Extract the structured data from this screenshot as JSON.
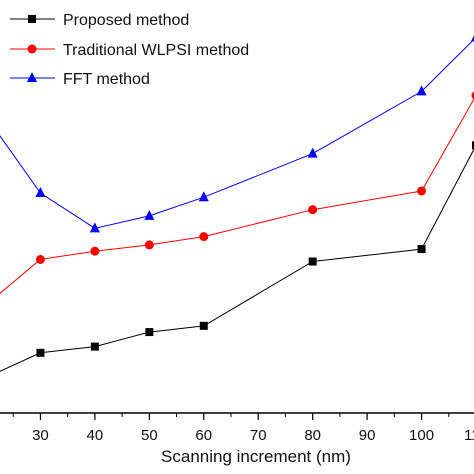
{
  "chart_data": {
    "type": "line",
    "title": "",
    "xlabel": "Scanning increment (nm)",
    "ylabel": "",
    "xlim": [
      20,
      110
    ],
    "ylim": [
      0,
      1
    ],
    "x_ticks": [
      20,
      30,
      40,
      50,
      60,
      70,
      80,
      90,
      100,
      110
    ],
    "x_tick_labels": [
      "20",
      "30",
      "40",
      "50",
      "60",
      "70",
      "80",
      "90",
      "100",
      "110"
    ],
    "grid": false,
    "legend_position": "top-left",
    "series": [
      {
        "name": "Proposed method",
        "color": "#000000",
        "marker": "square",
        "x": [
          20,
          30,
          40,
          50,
          60,
          80,
          100,
          110
        ],
        "y": [
          0.085,
          0.145,
          0.16,
          0.195,
          0.21,
          0.365,
          0.395,
          0.645
        ]
      },
      {
        "name": "Traditional WLPSI method",
        "color": "#ff0000",
        "marker": "circle",
        "x": [
          20,
          30,
          40,
          50,
          60,
          80,
          100,
          110
        ],
        "y": [
          0.26,
          0.37,
          0.39,
          0.405,
          0.425,
          0.49,
          0.535,
          0.765
        ]
      },
      {
        "name": "FFT method",
        "color": "#0000ff",
        "marker": "triangle",
        "x": [
          20,
          30,
          40,
          50,
          60,
          80,
          100,
          110
        ],
        "y": [
          0.715,
          0.53,
          0.445,
          0.475,
          0.52,
          0.625,
          0.775,
          0.905
        ]
      }
    ]
  }
}
